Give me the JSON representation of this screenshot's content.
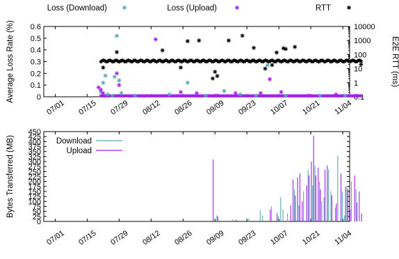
{
  "chart_data": [
    {
      "type": "scatter",
      "legend": [
        {
          "name": "Loss (Download)",
          "marker": "*",
          "color": "#5aa8b0"
        },
        {
          "name": "Loss (Upload)",
          "marker": "*",
          "color": "#a020f0"
        },
        {
          "name": "RTT",
          "marker": "*",
          "color": "#000000"
        }
      ],
      "legend_placement": "top, outside",
      "ylabel_left": "Average Loss Rate (%)",
      "ylabel_right": "E2E RTT (ms)",
      "ylim_left": [
        0,
        0.6
      ],
      "yticks_left": [
        "0",
        "0.1",
        "0.2",
        "0.3",
        "0.4",
        "0.5",
        "0.6"
      ],
      "ylim_right": [
        0.1,
        10000
      ],
      "yscale_right": "log",
      "yticks_right": [
        "0.1",
        "1",
        "10",
        "100",
        "1000",
        "10000"
      ],
      "xticks": [
        "07/01",
        "07/15",
        "07/29",
        "08/12",
        "08/26",
        "09/09",
        "09/23",
        "10/07",
        "10/21",
        "11/04"
      ],
      "x_start": "07/21",
      "x_end": "11/12",
      "series": [
        {
          "name": "Loss (Download)",
          "points": [
            [
              "07/21",
              0.04
            ],
            [
              "07/22",
              0.12
            ],
            [
              "07/23",
              0.18
            ],
            [
              "07/24",
              0.02
            ],
            [
              "07/26",
              0.01
            ],
            [
              "07/27",
              0.17
            ],
            [
              "07/28",
              0.52
            ],
            [
              "07/29",
              0.14
            ],
            [
              "07/30",
              0.03
            ],
            [
              "08/05",
              0.01
            ],
            [
              "08/20",
              0.02
            ],
            [
              "08/28",
              0.12
            ],
            [
              "09/05",
              0.01
            ],
            [
              "09/13",
              0.05
            ],
            [
              "09/20",
              0.02
            ],
            [
              "09/27",
              0.01
            ],
            [
              "10/02",
              0.27
            ],
            [
              "10/10",
              0.01
            ],
            [
              "10/25",
              0.01
            ],
            [
              "11/05",
              0.01
            ]
          ]
        },
        {
          "name": "Loss (Upload)",
          "points": [
            [
              "07/20",
              0.08
            ],
            [
              "07/21",
              0.06
            ],
            [
              "07/22",
              0.03
            ],
            [
              "07/28",
              0.2
            ],
            [
              "07/29",
              0.1
            ],
            [
              "08/14",
              0.49
            ],
            [
              "08/25",
              0.04
            ],
            [
              "09/01",
              0.03
            ],
            [
              "09/10",
              0.01
            ],
            [
              "09/18",
              0.03
            ],
            [
              "09/29",
              0.03
            ],
            [
              "10/03",
              0.15
            ],
            [
              "10/08",
              0.04
            ],
            [
              "10/20",
              0.01
            ],
            [
              "11/01",
              0.02
            ],
            [
              "11/10",
              0.01
            ]
          ]
        },
        {
          "name": "RTT",
          "baseline_ms": 35,
          "outliers_ms": [
            [
              "07/22",
              12
            ],
            [
              "07/28",
              150
            ],
            [
              "08/17",
              200
            ],
            [
              "08/25",
              12
            ],
            [
              "08/28",
              900
            ],
            [
              "09/02",
              1000
            ],
            [
              "09/08",
              2
            ],
            [
              "09/09",
              6
            ],
            [
              "09/10",
              3
            ],
            [
              "09/15",
              1000
            ],
            [
              "09/21",
              2200
            ],
            [
              "09/26",
              300
            ],
            [
              "10/01",
              10
            ],
            [
              "10/04",
              18
            ],
            [
              "10/06",
              140
            ],
            [
              "10/09",
              280
            ],
            [
              "10/10",
              250
            ],
            [
              "10/14",
              350
            ],
            [
              "11/12",
              20
            ]
          ]
        }
      ]
    },
    {
      "type": "bar",
      "legend": [
        {
          "name": "Download",
          "color": "#5aa8b0"
        },
        {
          "name": "Upload",
          "color": "#a020f0"
        }
      ],
      "legend_placement": "top-left",
      "ylabel": "Bytes Transferred (MB)",
      "ylim": [
        0,
        450
      ],
      "yticks": [
        "0",
        "25",
        "50",
        "75",
        "100",
        "125",
        "150",
        "175",
        "200",
        "225",
        "250",
        "275",
        "300",
        "325",
        "350",
        "375",
        "400",
        "425",
        "450"
      ],
      "xticks": [
        "07/01",
        "07/15",
        "07/29",
        "08/12",
        "08/26",
        "09/09",
        "09/23",
        "10/07",
        "10/21",
        "11/04"
      ],
      "series": [
        {
          "name": "Download",
          "points": [
            [
              "09/10",
              30
            ],
            [
              "09/17",
              10
            ],
            [
              "09/24",
              15
            ],
            [
              "09/29",
              55
            ],
            [
              "09/30",
              30
            ],
            [
              "10/04",
              75
            ],
            [
              "10/07",
              25
            ],
            [
              "10/08",
              120
            ],
            [
              "10/09",
              60
            ],
            [
              "10/11",
              40
            ],
            [
              "10/14",
              160
            ],
            [
              "10/16",
              80
            ],
            [
              "10/18",
              150
            ],
            [
              "10/20",
              260
            ],
            [
              "10/22",
              180
            ],
            [
              "10/23",
              280
            ],
            [
              "10/25",
              200
            ],
            [
              "10/26",
              100
            ],
            [
              "10/27",
              120
            ],
            [
              "10/29",
              260
            ],
            [
              "10/30",
              150
            ],
            [
              "11/01",
              70
            ],
            [
              "11/02",
              330
            ],
            [
              "11/04",
              150
            ],
            [
              "11/05",
              30
            ],
            [
              "11/06",
              170
            ],
            [
              "11/08",
              200
            ],
            [
              "11/10",
              160
            ]
          ]
        },
        {
          "name": "Upload",
          "points": [
            [
              "09/08",
              310
            ],
            [
              "09/10",
              25
            ],
            [
              "09/18",
              8
            ],
            [
              "10/03",
              60
            ],
            [
              "10/06",
              40
            ],
            [
              "10/12",
              80
            ],
            [
              "10/13",
              210
            ],
            [
              "10/14",
              130
            ],
            [
              "10/15",
              220
            ],
            [
              "10/16",
              240
            ],
            [
              "10/17",
              100
            ],
            [
              "10/19",
              180
            ],
            [
              "10/20",
              230
            ],
            [
              "10/21",
              300
            ],
            [
              "10/22",
              430
            ],
            [
              "10/23",
              230
            ],
            [
              "10/24",
              270
            ],
            [
              "10/25",
              160
            ],
            [
              "10/27",
              260
            ],
            [
              "10/28",
              280
            ],
            [
              "10/30",
              130
            ],
            [
              "11/01",
              90
            ],
            [
              "11/03",
              240
            ],
            [
              "11/05",
              175
            ],
            [
              "11/06",
              160
            ],
            [
              "11/07",
              60
            ],
            [
              "11/09",
              230
            ],
            [
              "11/10",
              95
            ],
            [
              "11/11",
              150
            ],
            [
              "11/12",
              40
            ]
          ]
        }
      ]
    }
  ]
}
